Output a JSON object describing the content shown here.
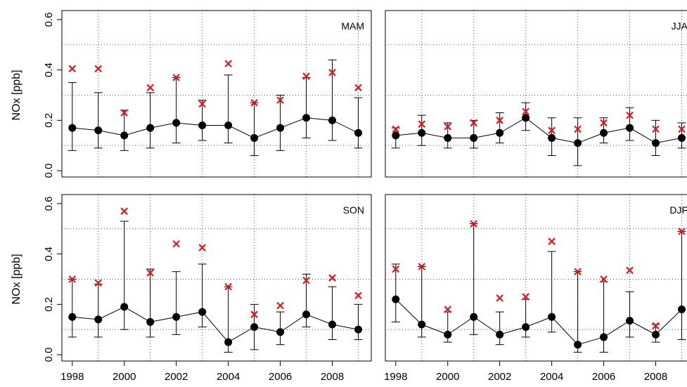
{
  "chart_data": [
    {
      "type": "errorbar",
      "label": "MAM",
      "ylabel": "NOx [ppb]",
      "x": [
        1998,
        1999,
        2000,
        2001,
        2002,
        2003,
        2004,
        2005,
        2006,
        2007,
        2008,
        2009
      ],
      "values": [
        0.17,
        0.16,
        0.14,
        0.17,
        0.19,
        0.18,
        0.18,
        0.13,
        0.17,
        0.21,
        0.2,
        0.15
      ],
      "lower": [
        0.08,
        0.09,
        0.08,
        0.09,
        0.11,
        0.12,
        0.11,
        0.06,
        0.08,
        0.13,
        0.12,
        0.09
      ],
      "upper": [
        0.35,
        0.31,
        0.24,
        0.31,
        0.37,
        0.28,
        0.38,
        0.27,
        0.3,
        0.37,
        0.44,
        0.29
      ],
      "points": [
        0.405,
        0.405,
        0.23,
        0.33,
        0.37,
        0.265,
        0.425,
        0.27,
        0.28,
        0.375,
        0.39,
        0.33
      ],
      "color": "#000000",
      "points_color": "#e8141c",
      "xlim": [
        1997.6,
        2009.5
      ],
      "ylim": [
        -0.025,
        0.636
      ],
      "yticks": [
        {
          "value": 0,
          "label": "0.0"
        },
        {
          "value": 0.2,
          "label": "0.2"
        },
        {
          "value": 0.4,
          "label": "0.4"
        },
        {
          "value": 0.6,
          "label": "0.6"
        }
      ],
      "xgrid": [
        1999,
        2001,
        2003,
        2005,
        2007,
        2009
      ],
      "ygrid": [
        0.1,
        0.3,
        0.5
      ]
    },
    {
      "type": "errorbar",
      "label": "JJA",
      "x": [
        1998,
        1999,
        2000,
        2001,
        2002,
        2003,
        2004,
        2005,
        2006,
        2007,
        2008,
        2009
      ],
      "values": [
        0.14,
        0.15,
        0.13,
        0.13,
        0.15,
        0.21,
        0.13,
        0.11,
        0.15,
        0.17,
        0.11,
        0.13
      ],
      "lower": [
        0.09,
        0.1,
        0.09,
        0.09,
        0.11,
        0.16,
        0.06,
        0.02,
        0.11,
        0.12,
        0.06,
        0.09
      ],
      "upper": [
        0.17,
        0.22,
        0.19,
        0.2,
        0.23,
        0.27,
        0.21,
        0.21,
        0.21,
        0.25,
        0.2,
        0.19
      ],
      "points": [
        0.165,
        0.185,
        0.175,
        0.19,
        0.2,
        0.235,
        0.16,
        0.165,
        0.19,
        0.22,
        0.165,
        0.165
      ],
      "color": "#000000",
      "points_color": "#e8141c",
      "xlim": [
        1997.6,
        2009.5
      ],
      "ylim": [
        -0.025,
        0.636
      ],
      "xgrid": [
        1999,
        2001,
        2003,
        2005,
        2007,
        2009
      ],
      "ygrid": [
        0.1,
        0.3,
        0.5
      ]
    },
    {
      "type": "errorbar",
      "label": "SON",
      "ylabel": "NOx [ppb]",
      "x": [
        1998,
        1999,
        2000,
        2001,
        2002,
        2003,
        2004,
        2005,
        2006,
        2007,
        2008,
        2009
      ],
      "values": [
        0.15,
        0.14,
        0.19,
        0.13,
        0.15,
        0.17,
        0.05,
        0.11,
        0.09,
        0.16,
        0.12,
        0.1
      ],
      "lower": [
        0.07,
        0.07,
        0.1,
        0.07,
        0.08,
        0.11,
        0.01,
        0.02,
        0.04,
        0.11,
        0.06,
        0.06
      ],
      "upper": [
        0.3,
        0.28,
        0.53,
        0.34,
        0.33,
        0.36,
        0.27,
        0.2,
        0.17,
        0.32,
        0.27,
        0.2
      ],
      "points": [
        0.3,
        0.285,
        0.57,
        0.325,
        0.44,
        0.425,
        0.27,
        0.16,
        0.195,
        0.295,
        0.305,
        0.235
      ],
      "color": "#000000",
      "points_color": "#e8141c",
      "xlim": [
        1997.6,
        2009.5
      ],
      "ylim": [
        -0.025,
        0.636
      ],
      "yticks": [
        {
          "value": 0,
          "label": "0.0"
        },
        {
          "value": 0.2,
          "label": "0.2"
        },
        {
          "value": 0.4,
          "label": "0.4"
        },
        {
          "value": 0.6,
          "label": "0.6"
        }
      ],
      "xticks": [
        1998,
        2000,
        2002,
        2004,
        2006,
        2008
      ],
      "xgrid": [
        1999,
        2001,
        2003,
        2005,
        2007,
        2009
      ],
      "ygrid": [
        0.1,
        0.3,
        0.5
      ]
    },
    {
      "type": "errorbar",
      "label": "DJF",
      "x": [
        1998,
        1999,
        2000,
        2001,
        2002,
        2003,
        2004,
        2005,
        2006,
        2007,
        2008,
        2009
      ],
      "values": [
        0.22,
        0.12,
        0.08,
        0.15,
        0.08,
        0.11,
        0.15,
        0.04,
        0.07,
        0.135,
        0.08,
        0.18
      ],
      "lower": [
        0.13,
        0.07,
        0.05,
        0.08,
        0.04,
        0.07,
        0.09,
        0.01,
        0.01,
        0.07,
        0.05,
        0.06
      ],
      "upper": [
        0.36,
        0.35,
        0.17,
        0.52,
        0.17,
        0.22,
        0.41,
        0.33,
        0.29,
        0.25,
        0.12,
        0.49
      ],
      "points": [
        0.34,
        0.35,
        0.18,
        0.52,
        0.225,
        0.23,
        0.45,
        0.33,
        0.3,
        0.335,
        0.115,
        0.49
      ],
      "color": "#000000",
      "points_color": "#e8141c",
      "xlim": [
        1997.6,
        2009.5
      ],
      "ylim": [
        -0.025,
        0.636
      ],
      "xticks": [
        1998,
        2000,
        2002,
        2004,
        2006,
        2008
      ],
      "xgrid": [
        1999,
        2001,
        2003,
        2005,
        2007,
        2009
      ],
      "ygrid": [
        0.1,
        0.3,
        0.5
      ]
    }
  ]
}
